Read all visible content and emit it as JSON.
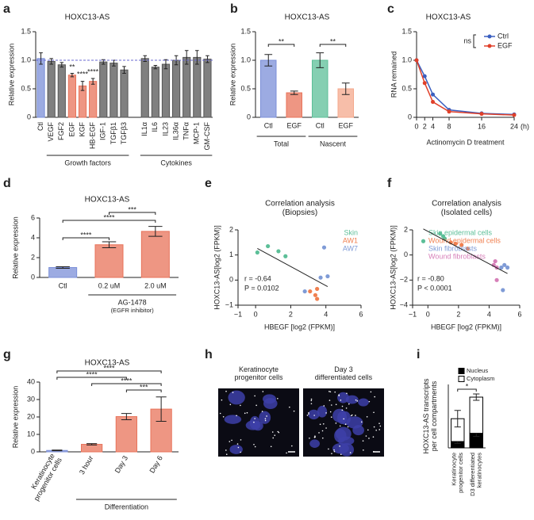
{
  "chart_data": [
    {
      "panel": "a",
      "type": "bar",
      "title": "HOXC13-AS",
      "y_label": "Relative expression",
      "categories": [
        "Ctl",
        "VEGF",
        "FGF2",
        "EGF",
        "KGF",
        "HB-EGF",
        "IGF-1",
        "TGFβ1",
        "TGFβ3",
        "IL1α",
        "IL6",
        "IL23",
        "IL36α",
        "TNFα",
        "MCP-1",
        "GM-CSF"
      ],
      "values": [
        1.03,
        0.98,
        0.92,
        0.74,
        0.55,
        0.63,
        0.97,
        0.95,
        0.83,
        1.03,
        0.88,
        0.93,
        1.0,
        1.05,
        1.05,
        1.02
      ],
      "errors": [
        0.1,
        0.05,
        0.04,
        0.03,
        0.08,
        0.05,
        0.04,
        0.05,
        0.06,
        0.05,
        0.03,
        0.08,
        0.08,
        0.12,
        0.12,
        0.06
      ],
      "colors": [
        "#7b8fd8",
        "#555555",
        "#555555",
        "#e8735a",
        "#e8735a",
        "#e8735a",
        "#555555",
        "#555555",
        "#555555",
        "#555555",
        "#555555",
        "#555555",
        "#555555",
        "#555555",
        "#555555",
        "#555555"
      ],
      "group_labels": [
        "Growth factors",
        "Cytokines"
      ],
      "annotations": [
        "**",
        "****",
        "****"
      ],
      "ref_line": 1,
      "ylim": [
        0,
        1.5
      ],
      "yticks": [
        0,
        0.5,
        {
          "value": 1,
          "label": "1.0"
        },
        1.5
      ]
    },
    {
      "panel": "b",
      "type": "bar",
      "title": "HOXC13-AS",
      "y_label": "Relative expression",
      "categories": [
        "Ctl",
        "EGF",
        "Ctl",
        "EGF"
      ],
      "values": [
        1.0,
        0.43,
        1.0,
        0.5
      ],
      "errors": [
        0.1,
        0.03,
        0.13,
        0.1
      ],
      "colors": [
        "#7b8fd8",
        "#e8735a",
        "#5cbf98",
        "#f4a88c"
      ],
      "group_labels": [
        "Total",
        "Nascent"
      ],
      "annotations": [
        "**",
        "**"
      ],
      "ylim": [
        0,
        1.5
      ],
      "yticks": [
        0,
        0.5,
        {
          "value": 1,
          "label": "1.0"
        },
        1.5
      ]
    },
    {
      "panel": "c",
      "type": "line",
      "title": "HOXC13-AS",
      "y_label": "RNA remained",
      "x_label": "Actinomycin D treatment",
      "x_unit": "(h)",
      "x": [
        0,
        2,
        4,
        8,
        16,
        24
      ],
      "series": [
        {
          "name": "Ctrl",
          "color": "#3a5fc0",
          "values": [
            1.0,
            0.72,
            0.4,
            0.13,
            0.07,
            0.05
          ]
        },
        {
          "name": "EGF",
          "color": "#e0402a",
          "values": [
            1.0,
            0.6,
            0.27,
            0.1,
            0.06,
            0.04
          ]
        }
      ],
      "annotations": [
        "ns"
      ],
      "xlim": [
        0,
        24
      ],
      "xticks": [
        0,
        2,
        4,
        8,
        16,
        24
      ],
      "ylim": [
        0,
        1.5
      ],
      "yticks": [
        0,
        0.5,
        {
          "value": 1,
          "label": "1.0"
        },
        1.5
      ]
    },
    {
      "panel": "d",
      "type": "bar",
      "title": "HOXC13-AS",
      "y_label": "Relative expression",
      "categories": [
        "Ctl",
        "0.2 uM",
        "2.0 uM"
      ],
      "values": [
        1.0,
        3.3,
        4.65
      ],
      "errors": [
        0.08,
        0.3,
        0.5
      ],
      "colors": [
        "#7b8fd8",
        "#e8735a",
        "#e8735a"
      ],
      "group_labels": [
        "AG-1478"
      ],
      "note": "(EGFR inhibitor)",
      "annotations": [
        "***",
        "****",
        "****"
      ],
      "ylim": [
        0,
        6
      ],
      "yticks": [
        0,
        2,
        4,
        6
      ]
    },
    {
      "panel": "e",
      "type": "scatter",
      "title": [
        "Correlation analysis",
        "(Biopsies)"
      ],
      "x_label": "HBEGF [log2 (FPKM)]",
      "y_label": "HOXC13-AS[log2 (FPKM)]",
      "series": [
        {
          "name": "Skin",
          "color": "#5cbf98",
          "x": [
            0.1,
            0.7,
            1.3,
            1.7
          ],
          "y": [
            1.1,
            1.35,
            1.15,
            0.95
          ]
        },
        {
          "name": "AW1",
          "color": "#f08050",
          "x": [
            3.1,
            3.4,
            3.5,
            3.5
          ],
          "y": [
            -0.45,
            -0.6,
            -0.75,
            -0.35
          ]
        },
        {
          "name": "AW7",
          "color": "#7f9bd6",
          "x": [
            2.8,
            3.7,
            3.9,
            4.1
          ],
          "y": [
            -0.45,
            0.1,
            1.3,
            0.15
          ]
        }
      ],
      "stats": [
        "r = -0.64",
        "P = 0.0102"
      ],
      "xlim": [
        -1,
        6
      ],
      "xticks": [
        {
          "value": -1,
          "label": "−1"
        },
        0,
        2,
        4,
        6
      ],
      "ylim": [
        -1,
        2
      ],
      "yticks": [
        {
          "value": -1,
          "label": "−1"
        },
        0,
        1,
        2
      ]
    },
    {
      "panel": "f",
      "type": "scatter",
      "title": [
        "Correlation analysis",
        "(Isolated cells)"
      ],
      "x_label": "HBEGF [log2 (FPKM)]",
      "y_label": "HOXC13-AS[log2 (FPKM)]",
      "series": [
        {
          "name": "Skin epidermal cells",
          "color": "#5cbf98",
          "x": [
            -0.3,
            0.8,
            1.0,
            1.1
          ],
          "y": [
            1.1,
            1.7,
            1.5,
            1.3
          ]
        },
        {
          "name": "Wound epidermal cells",
          "color": "#f08050",
          "x": [
            1.5,
            1.8,
            2.2,
            2.6
          ],
          "y": [
            1.0,
            0.9,
            0.8,
            0.5
          ]
        },
        {
          "name": "Skin fibroblasts",
          "color": "#7f9bd6",
          "x": [
            4.8,
            5.0,
            5.2,
            4.9
          ],
          "y": [
            -1.0,
            -0.8,
            -1.0,
            -2.8
          ]
        },
        {
          "name": "Wound fibroblasts",
          "color": "#d67fb8",
          "x": [
            4.3,
            4.5,
            4.5,
            4.4
          ],
          "y": [
            -0.8,
            -1.0,
            -2.0,
            -0.5
          ]
        }
      ],
      "stats": [
        "r = -0.80",
        "P < 0.0001"
      ],
      "xlim": [
        -1,
        6
      ],
      "xticks": [
        {
          "value": -1,
          "label": "−1"
        },
        0,
        2,
        4,
        6
      ],
      "ylim": [
        -4,
        2
      ],
      "yticks": [
        {
          "value": -4,
          "label": "−4"
        },
        {
          "value": -2,
          "label": "−2"
        },
        0,
        2
      ]
    },
    {
      "panel": "g",
      "type": "bar",
      "title": "HOXC13-AS",
      "y_label": "Relative expression",
      "categories": [
        [
          "Keratinocyte",
          "progenitor cells"
        ],
        "3 hour",
        "Day 3",
        "Day 6"
      ],
      "values": [
        0.8,
        4.3,
        20.2,
        24.5
      ],
      "errors": [
        0.2,
        0.4,
        1.8,
        7
      ],
      "colors": [
        "#7b8fd8",
        "#e8735a",
        "#e8735a",
        "#e8735a"
      ],
      "group_labels": [
        "Differentiation"
      ],
      "annotations": [
        "****",
        "****",
        "****",
        "***"
      ],
      "ylim": [
        0,
        40
      ],
      "yticks": [
        0,
        10,
        20,
        30,
        40
      ]
    },
    {
      "panel": "h",
      "type": "image",
      "labels": [
        [
          "Keratinocyte",
          "progenitor cells"
        ],
        [
          "Day 3",
          "differentiated cells"
        ]
      ]
    },
    {
      "panel": "i",
      "type": "bar",
      "y_label": [
        "HOXC13-AS transcripts",
        "per cell compartments"
      ],
      "categories": [
        [
          "Keratinocyte",
          "progenitor cells"
        ],
        [
          "D3 differentiated",
          "keratinocytes"
        ]
      ],
      "series": [
        {
          "name": "Nucleus",
          "color": "#000000",
          "values": [
            1.0,
            2.3
          ],
          "errors": [
            0.3,
            0.5
          ]
        },
        {
          "name": "Cytoplasm",
          "color": "#ffffff",
          "values": [
            3.6,
            5.7
          ],
          "errors": [
            1.3,
            0.5
          ]
        }
      ],
      "annotations": [
        "*"
      ],
      "ylim": [
        0,
        10
      ]
    }
  ]
}
